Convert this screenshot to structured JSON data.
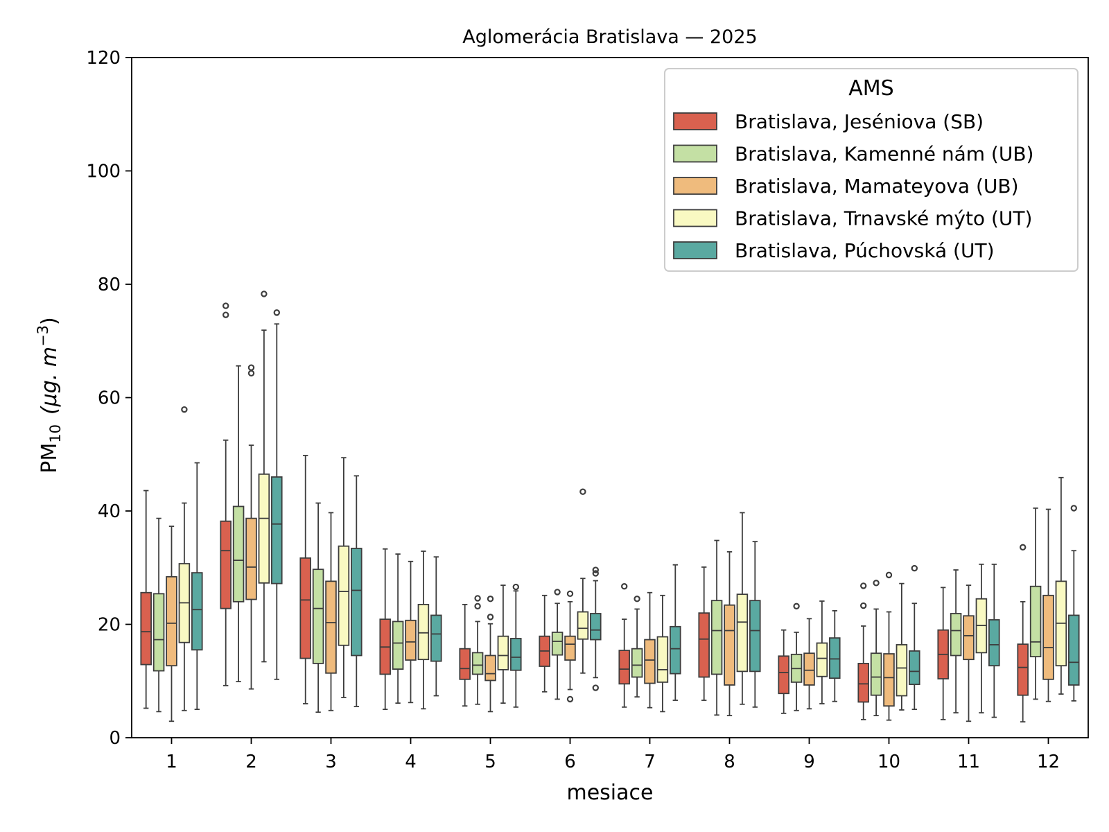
{
  "chart_data": {
    "type": "boxplot",
    "title": "Aglomerácia Bratislava —  2025",
    "xlabel": "mesiace",
    "ylabel": {
      "main": "PM",
      "sub": "10",
      "unit": "(μg. m",
      "unit_sup": "−3",
      "unit_close": ")"
    },
    "ylim": [
      0,
      120
    ],
    "yticks": [
      0,
      20,
      40,
      60,
      80,
      100,
      120
    ],
    "categories": [
      "1",
      "2",
      "3",
      "4",
      "5",
      "6",
      "7",
      "8",
      "9",
      "10",
      "11",
      "12"
    ],
    "legend": {
      "title": "AMS",
      "position": "top-right"
    },
    "series": [
      {
        "name": "Bratislava, Jeséniova (SB)",
        "color": "#d9614f",
        "boxes": [
          {
            "whislo": 5.2,
            "q1": 12.9,
            "med": 18.7,
            "q3": 25.6,
            "whishi": 43.6,
            "fliers": []
          },
          {
            "whislo": 9.2,
            "q1": 22.8,
            "med": 33.0,
            "q3": 38.2,
            "whishi": 52.5,
            "fliers": [
              74.6,
              76.2
            ]
          },
          {
            "whislo": 6.0,
            "q1": 14.0,
            "med": 24.3,
            "q3": 31.7,
            "whishi": 49.8,
            "fliers": []
          },
          {
            "whislo": 5.0,
            "q1": 11.2,
            "med": 16.0,
            "q3": 20.9,
            "whishi": 33.3,
            "fliers": []
          },
          {
            "whislo": 5.6,
            "q1": 10.3,
            "med": 12.2,
            "q3": 15.7,
            "whishi": 23.5,
            "fliers": []
          },
          {
            "whislo": 8.1,
            "q1": 12.6,
            "med": 15.3,
            "q3": 17.9,
            "whishi": 25.1,
            "fliers": []
          },
          {
            "whislo": 5.4,
            "q1": 9.5,
            "med": 12.1,
            "q3": 15.4,
            "whishi": 20.9,
            "fliers": [
              26.7
            ]
          },
          {
            "whislo": 6.6,
            "q1": 10.7,
            "med": 17.4,
            "q3": 22.0,
            "whishi": 30.1,
            "fliers": []
          },
          {
            "whislo": 4.3,
            "q1": 7.8,
            "med": 11.5,
            "q3": 14.4,
            "whishi": 19.0,
            "fliers": []
          },
          {
            "whislo": 3.2,
            "q1": 6.3,
            "med": 9.5,
            "q3": 13.1,
            "whishi": 19.7,
            "fliers": [
              23.3,
              26.8
            ]
          },
          {
            "whislo": 3.2,
            "q1": 10.4,
            "med": 14.7,
            "q3": 19.0,
            "whishi": 26.5,
            "fliers": []
          },
          {
            "whislo": 2.8,
            "q1": 7.5,
            "med": 12.4,
            "q3": 16.5,
            "whishi": 24.0,
            "fliers": [
              33.6
            ]
          }
        ]
      },
      {
        "name": "Bratislava, Kamenné nám (UB)",
        "color": "#c4e0a4",
        "boxes": [
          {
            "whislo": 4.6,
            "q1": 11.8,
            "med": 17.3,
            "q3": 25.4,
            "whishi": 38.7,
            "fliers": []
          },
          {
            "whislo": 9.9,
            "q1": 24.0,
            "med": 31.3,
            "q3": 40.8,
            "whishi": 65.6,
            "fliers": []
          },
          {
            "whislo": 4.5,
            "q1": 13.1,
            "med": 22.8,
            "q3": 29.7,
            "whishi": 41.4,
            "fliers": []
          },
          {
            "whislo": 6.1,
            "q1": 12.1,
            "med": 16.7,
            "q3": 20.5,
            "whishi": 32.4,
            "fliers": []
          },
          {
            "whislo": 5.9,
            "q1": 11.2,
            "med": 12.8,
            "q3": 15.0,
            "whishi": 20.5,
            "fliers": [
              23.2,
              24.6
            ]
          },
          {
            "whislo": 6.8,
            "q1": 14.6,
            "med": 17.0,
            "q3": 18.6,
            "whishi": 23.7,
            "fliers": [
              25.7
            ]
          },
          {
            "whislo": 7.2,
            "q1": 10.7,
            "med": 12.8,
            "q3": 15.7,
            "whishi": 22.7,
            "fliers": [
              24.5
            ]
          },
          {
            "whislo": 4.0,
            "q1": 11.2,
            "med": 18.9,
            "q3": 24.2,
            "whishi": 34.8,
            "fliers": []
          },
          {
            "whislo": 4.8,
            "q1": 9.8,
            "med": 12.2,
            "q3": 14.7,
            "whishi": 18.6,
            "fliers": [
              23.2
            ]
          },
          {
            "whislo": 3.9,
            "q1": 7.5,
            "med": 10.7,
            "q3": 14.9,
            "whishi": 22.7,
            "fliers": [
              27.3
            ]
          },
          {
            "whislo": 4.4,
            "q1": 14.5,
            "med": 18.9,
            "q3": 21.9,
            "whishi": 29.6,
            "fliers": []
          },
          {
            "whislo": 6.8,
            "q1": 14.3,
            "med": 16.9,
            "q3": 26.7,
            "whishi": 40.5,
            "fliers": []
          }
        ]
      },
      {
        "name": "Bratislava, Mamateyova (UB)",
        "color": "#efbb7d",
        "boxes": [
          {
            "whislo": 2.9,
            "q1": 12.7,
            "med": 20.2,
            "q3": 28.4,
            "whishi": 37.3,
            "fliers": []
          },
          {
            "whislo": 8.6,
            "q1": 24.4,
            "med": 30.1,
            "q3": 38.7,
            "whishi": 51.6,
            "fliers": [
              64.3,
              65.3
            ]
          },
          {
            "whislo": 4.8,
            "q1": 11.4,
            "med": 20.3,
            "q3": 27.6,
            "whishi": 39.7,
            "fliers": []
          },
          {
            "whislo": 6.2,
            "q1": 13.7,
            "med": 16.9,
            "q3": 20.7,
            "whishi": 31.1,
            "fliers": []
          },
          {
            "whislo": 4.6,
            "q1": 10.1,
            "med": 11.3,
            "q3": 14.5,
            "whishi": 20.1,
            "fliers": [
              21.3,
              24.5
            ]
          },
          {
            "whislo": 8.5,
            "q1": 13.7,
            "med": 16.5,
            "q3": 17.9,
            "whishi": 24.0,
            "fliers": [
              6.8,
              25.4
            ]
          },
          {
            "whislo": 5.3,
            "q1": 9.6,
            "med": 13.7,
            "q3": 17.3,
            "whishi": 25.6,
            "fliers": []
          },
          {
            "whislo": 3.9,
            "q1": 9.3,
            "med": 18.9,
            "q3": 23.4,
            "whishi": 32.8,
            "fliers": []
          },
          {
            "whislo": 5.1,
            "q1": 9.3,
            "med": 11.9,
            "q3": 14.9,
            "whishi": 21.0,
            "fliers": []
          },
          {
            "whislo": 3.1,
            "q1": 5.6,
            "med": 10.6,
            "q3": 14.8,
            "whishi": 22.2,
            "fliers": [
              28.7
            ]
          },
          {
            "whislo": 2.9,
            "q1": 13.8,
            "med": 18.0,
            "q3": 21.5,
            "whishi": 26.9,
            "fliers": []
          },
          {
            "whislo": 6.4,
            "q1": 10.3,
            "med": 15.9,
            "q3": 25.1,
            "whishi": 40.3,
            "fliers": []
          }
        ]
      },
      {
        "name": "Bratislava, Trnavské mýto (UT)",
        "color": "#f9f9c2",
        "boxes": [
          {
            "whislo": 4.8,
            "q1": 16.8,
            "med": 23.8,
            "q3": 30.7,
            "whishi": 41.4,
            "fliers": [
              57.9
            ]
          },
          {
            "whislo": 13.4,
            "q1": 27.3,
            "med": 38.7,
            "q3": 46.5,
            "whishi": 71.9,
            "fliers": [
              78.3
            ]
          },
          {
            "whislo": 7.1,
            "q1": 16.3,
            "med": 25.8,
            "q3": 33.8,
            "whishi": 49.4,
            "fliers": []
          },
          {
            "whislo": 5.1,
            "q1": 13.8,
            "med": 18.5,
            "q3": 23.5,
            "whishi": 32.9,
            "fliers": []
          },
          {
            "whislo": 6.1,
            "q1": 12.0,
            "med": 14.5,
            "q3": 17.9,
            "whishi": 26.9,
            "fliers": []
          },
          {
            "whislo": 11.4,
            "q1": 17.4,
            "med": 19.3,
            "q3": 22.2,
            "whishi": 28.1,
            "fliers": [
              43.4
            ]
          },
          {
            "whislo": 4.6,
            "q1": 9.8,
            "med": 12.0,
            "q3": 17.8,
            "whishi": 25.1,
            "fliers": []
          },
          {
            "whislo": 5.9,
            "q1": 11.7,
            "med": 20.4,
            "q3": 25.3,
            "whishi": 39.7,
            "fliers": []
          },
          {
            "whislo": 6.0,
            "q1": 10.8,
            "med": 14.0,
            "q3": 16.7,
            "whishi": 24.1,
            "fliers": []
          },
          {
            "whislo": 4.9,
            "q1": 7.4,
            "med": 12.3,
            "q3": 16.4,
            "whishi": 27.2,
            "fliers": []
          },
          {
            "whislo": 4.4,
            "q1": 15.0,
            "med": 19.8,
            "q3": 24.5,
            "whishi": 30.6,
            "fliers": []
          },
          {
            "whislo": 7.7,
            "q1": 12.7,
            "med": 20.2,
            "q3": 27.6,
            "whishi": 45.9,
            "fliers": []
          }
        ]
      },
      {
        "name": "Bratislava, Púchovská (UT)",
        "color": "#5aa9a1",
        "boxes": [
          {
            "whislo": 5.0,
            "q1": 15.5,
            "med": 22.6,
            "q3": 29.1,
            "whishi": 48.5,
            "fliers": []
          },
          {
            "whislo": 10.3,
            "q1": 27.2,
            "med": 37.7,
            "q3": 46.0,
            "whishi": 73.0,
            "fliers": [
              75.0
            ]
          },
          {
            "whislo": 5.5,
            "q1": 14.5,
            "med": 26.0,
            "q3": 33.4,
            "whishi": 46.2,
            "fliers": []
          },
          {
            "whislo": 7.4,
            "q1": 13.5,
            "med": 18.3,
            "q3": 21.6,
            "whishi": 31.9,
            "fliers": []
          },
          {
            "whislo": 5.4,
            "q1": 11.9,
            "med": 14.2,
            "q3": 17.5,
            "whishi": 25.9,
            "fliers": [
              26.6
            ]
          },
          {
            "whislo": 10.6,
            "q1": 17.3,
            "med": 19.0,
            "q3": 21.9,
            "whishi": 27.7,
            "fliers": [
              8.8,
              29.0,
              29.6
            ]
          },
          {
            "whislo": 6.6,
            "q1": 11.3,
            "med": 15.7,
            "q3": 19.6,
            "whishi": 30.5,
            "fliers": []
          },
          {
            "whislo": 5.4,
            "q1": 11.7,
            "med": 18.9,
            "q3": 24.2,
            "whishi": 34.6,
            "fliers": []
          },
          {
            "whislo": 6.4,
            "q1": 10.5,
            "med": 13.9,
            "q3": 17.6,
            "whishi": 22.4,
            "fliers": []
          },
          {
            "whislo": 5.0,
            "q1": 9.4,
            "med": 11.7,
            "q3": 15.3,
            "whishi": 23.7,
            "fliers": [
              29.9
            ]
          },
          {
            "whislo": 3.6,
            "q1": 12.7,
            "med": 16.4,
            "q3": 20.8,
            "whishi": 30.6,
            "fliers": []
          },
          {
            "whislo": 6.5,
            "q1": 9.3,
            "med": 13.3,
            "q3": 21.6,
            "whishi": 33.0,
            "fliers": [
              40.5
            ]
          }
        ]
      }
    ]
  }
}
